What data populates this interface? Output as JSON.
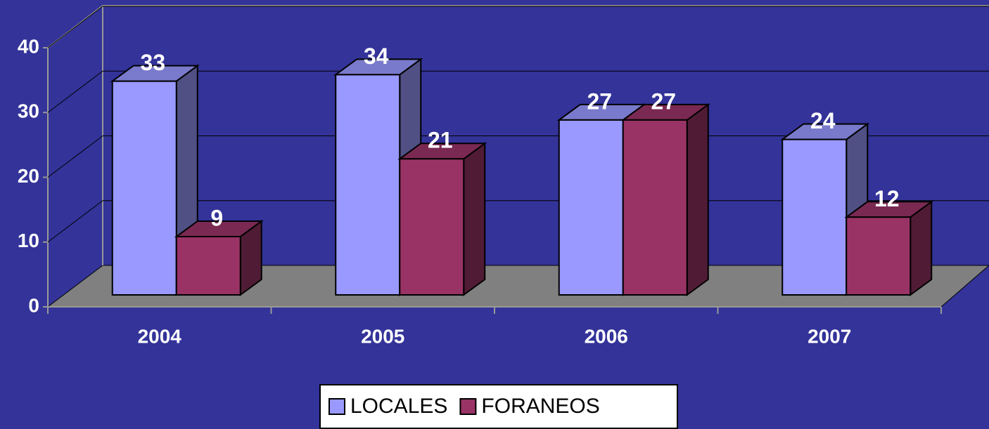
{
  "chart_data": {
    "type": "bar3d",
    "categories": [
      "2004",
      "2005",
      "2006",
      "2007"
    ],
    "series": [
      {
        "name": "LOCALES",
        "color": "#9999ff",
        "values": [
          33,
          34,
          27,
          24
        ]
      },
      {
        "name": "FORANEOS",
        "color": "#993366",
        "values": [
          9,
          21,
          27,
          12
        ]
      }
    ],
    "ylim": [
      0,
      40
    ],
    "yticks": [
      0,
      10,
      20,
      30,
      40
    ],
    "grid": true,
    "legend": "bottom"
  }
}
